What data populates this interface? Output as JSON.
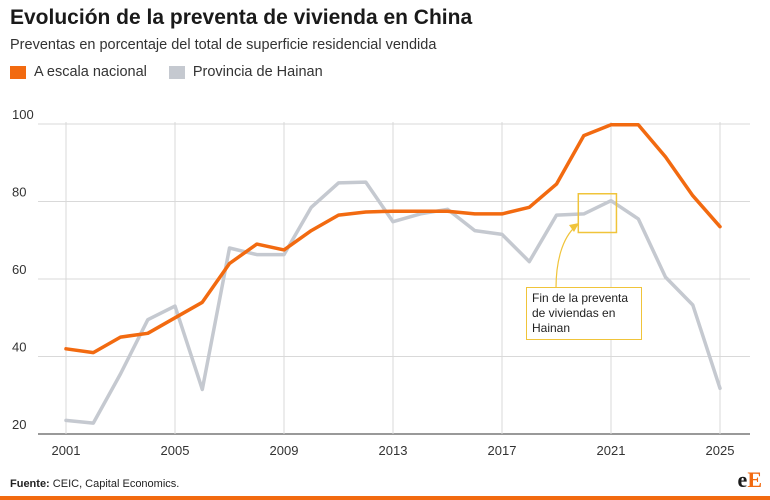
{
  "header": {
    "title": "Evolución de la preventa de vivienda en China",
    "subtitle": "Preventas en porcentaje del total de superficie residencial vendida"
  },
  "annotation": {
    "text": "Fin de la preventa de viviendas en Hainan"
  },
  "footer": {
    "source_label": "Fuente:",
    "source_text": " CEIC, Capital Economics.",
    "logo_main": "e",
    "logo_accent": "E"
  },
  "colors": {
    "national": "#f26a10",
    "hainan": "#c5c9d0",
    "annotation": "#f0c43a",
    "grid": "#d9d9d9"
  },
  "chart_data": {
    "type": "line",
    "title": "Evolución de la preventa de vivienda en China",
    "subtitle": "Preventas en porcentaje del total de superficie residencial vendida",
    "xlabel": "",
    "ylabel": "",
    "xlim": [
      2001,
      2025
    ],
    "ylim": [
      20,
      100
    ],
    "x_ticks": [
      2001,
      2005,
      2009,
      2013,
      2017,
      2021,
      2025
    ],
    "y_ticks": [
      20,
      40,
      60,
      80,
      100
    ],
    "grid": true,
    "legend_position": "top-left",
    "x": [
      2001,
      2002,
      2003,
      2004,
      2005,
      2006,
      2007,
      2008,
      2009,
      2010,
      2011,
      2012,
      2013,
      2014,
      2015,
      2016,
      2017,
      2018,
      2019,
      2020,
      2021,
      2022,
      2023,
      2024,
      2025
    ],
    "series": [
      {
        "name": "A escala nacional",
        "color": "#f26a10",
        "values": [
          42.0,
          41.0,
          45.0,
          46.0,
          50.0,
          54.0,
          64.0,
          69.0,
          67.5,
          72.5,
          76.5,
          77.3,
          77.5,
          77.5,
          77.5,
          76.8,
          76.8,
          78.5,
          84.5,
          97.0,
          99.8,
          99.8,
          91.5,
          81.5,
          73.5
        ]
      },
      {
        "name": "Provincia de Hainan",
        "color": "#c5c9d0",
        "values": [
          23.5,
          22.8,
          35.5,
          49.5,
          53.0,
          31.5,
          68.0,
          66.3,
          66.3,
          78.5,
          84.8,
          85.0,
          74.8,
          76.8,
          78.0,
          72.5,
          71.5,
          64.5,
          76.5,
          76.8,
          80.2,
          75.5,
          60.5,
          53.3,
          31.8
        ]
      }
    ],
    "annotation": {
      "text": "Fin de la preventa de viviendas en Hainan",
      "x_range": [
        2019.8,
        2021.2
      ],
      "y_range": [
        72,
        82
      ]
    }
  }
}
